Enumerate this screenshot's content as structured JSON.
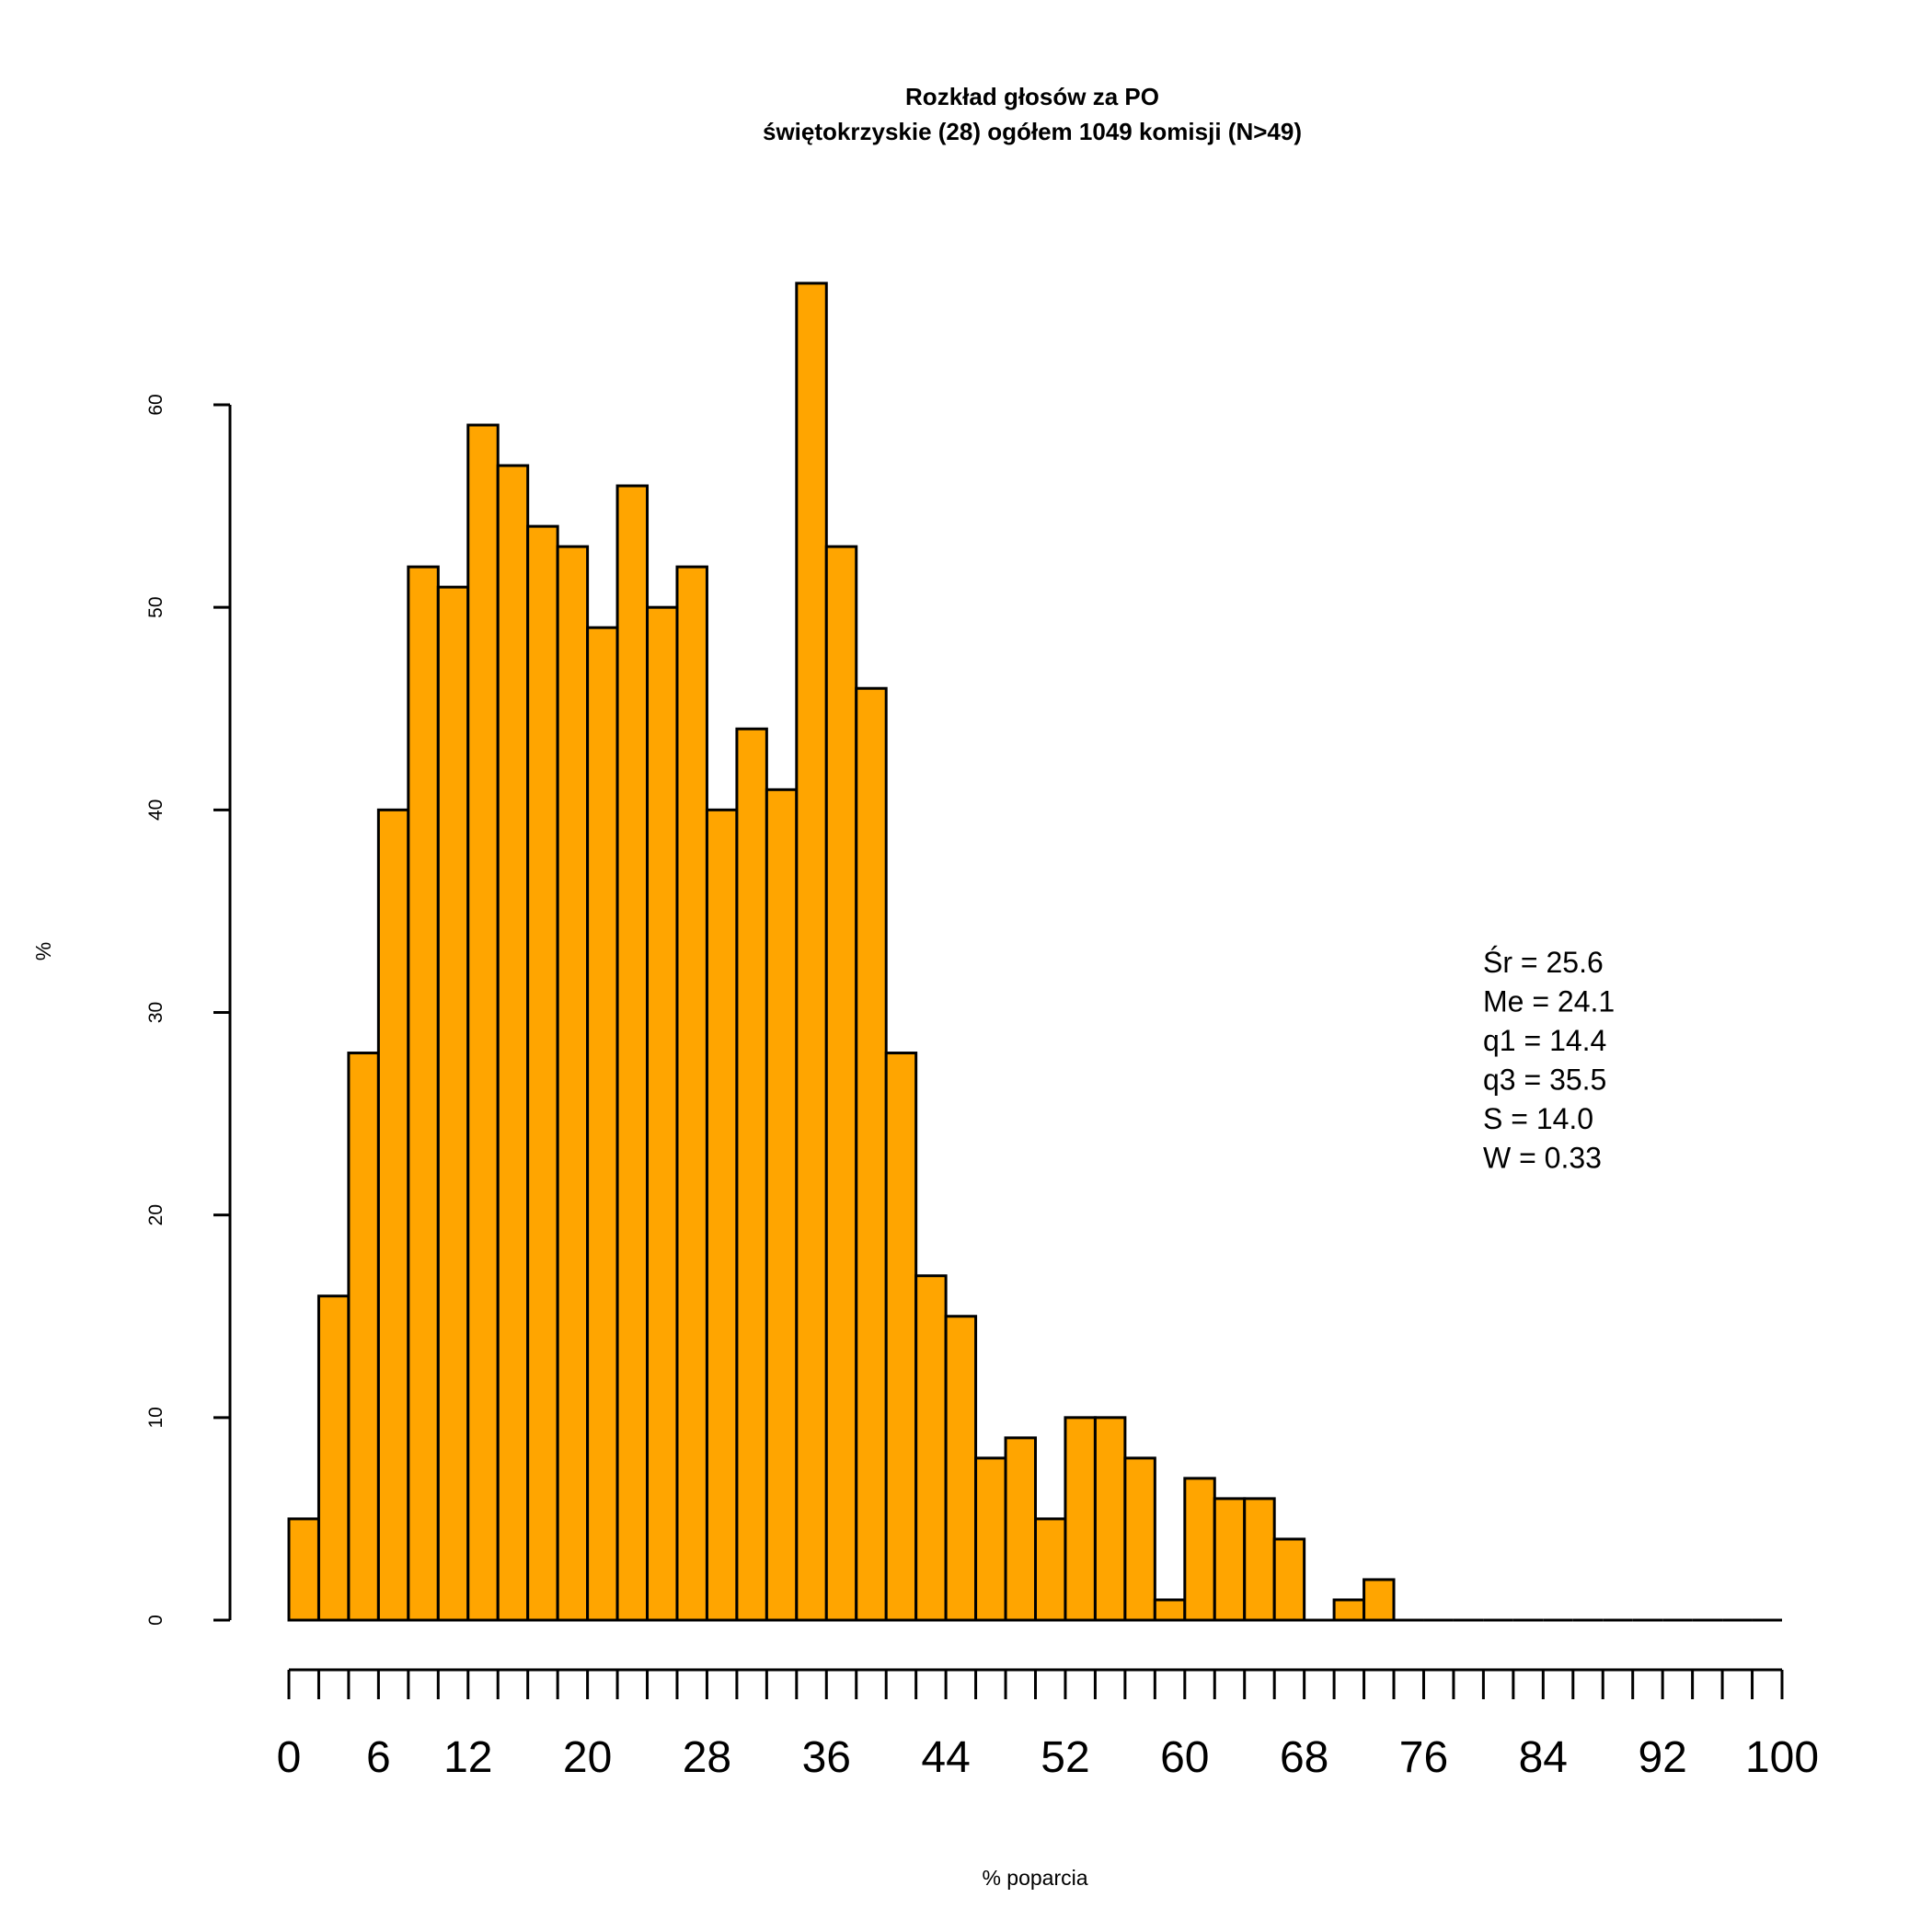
{
  "chart_data": {
    "type": "bar",
    "title": "Rozkład głosów za PO",
    "subtitle": "świętokrzyskie (28) ogółem 1049 komisji (N>49)",
    "xlabel": "% poparcia",
    "ylabel": "%",
    "bin_width": 2,
    "xlim": [
      0,
      100
    ],
    "ylim": [
      0,
      60
    ],
    "x_ticks": [
      0,
      6,
      12,
      20,
      28,
      36,
      44,
      52,
      60,
      68,
      76,
      84,
      92,
      100
    ],
    "y_ticks": [
      0,
      10,
      20,
      30,
      40,
      50,
      60
    ],
    "bin_starts": [
      0,
      2,
      4,
      6,
      8,
      10,
      12,
      14,
      16,
      18,
      20,
      22,
      24,
      26,
      28,
      30,
      32,
      34,
      36,
      38,
      40,
      42,
      44,
      46,
      48,
      50,
      52,
      54,
      56,
      58,
      60,
      62,
      64,
      66,
      68,
      70,
      72,
      74,
      76,
      78,
      80,
      82,
      84,
      86,
      88,
      90,
      92,
      94,
      96,
      98
    ],
    "values": [
      5,
      16,
      28,
      40,
      52,
      51,
      59,
      57,
      54,
      53,
      49,
      56,
      50,
      52,
      40,
      44,
      41,
      66,
      53,
      46,
      28,
      17,
      15,
      8,
      9,
      5,
      10,
      10,
      8,
      1,
      7,
      6,
      6,
      4,
      0,
      1,
      2,
      0,
      0,
      0,
      0,
      0,
      0,
      0,
      0,
      0,
      0,
      0,
      0,
      0
    ],
    "bar_color": "#FFA500",
    "stats": [
      "Śr = 25.6",
      "Me = 24.1",
      "q1 = 14.4",
      "q3 = 35.5",
      "S = 14.0",
      "W = 0.33"
    ]
  }
}
